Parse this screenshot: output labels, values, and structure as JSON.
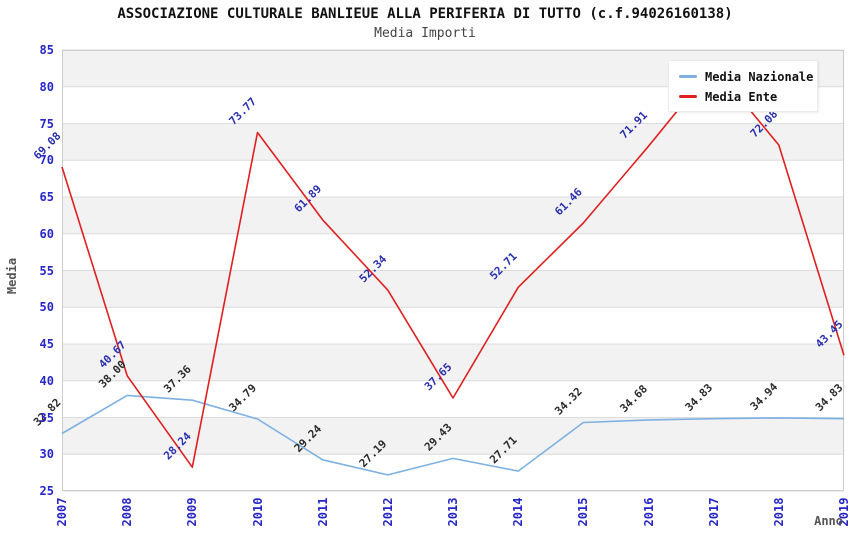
{
  "header": {
    "title": "ASSOCIAZIONE CULTURALE BANLIEUE ALLA PERIFERIA DI TUTTO (c.f.94026160138)",
    "subtitle": "Media Importi"
  },
  "axes": {
    "y_title": "Media",
    "x_title": "Anno"
  },
  "chart_data": {
    "type": "line",
    "title": "ASSOCIAZIONE CULTURALE BANLIEUE ALLA PERIFERIA DI TUTTO (c.f.94026160138)",
    "subtitle": "Media Importi",
    "xlabel": "Anno",
    "ylabel": "Media",
    "x": [
      "2007",
      "2008",
      "2009",
      "2010",
      "2011",
      "2012",
      "2013",
      "2014",
      "2015",
      "2016",
      "2017",
      "2018",
      "2019"
    ],
    "ylim": [
      25,
      85
    ],
    "ytick_step": 5,
    "ytick_labels": [
      "85",
      "80",
      "75",
      "70",
      "65",
      "60",
      "55",
      "50",
      "45",
      "40",
      "35",
      "30",
      "25"
    ],
    "grid": true,
    "background_bands": true,
    "band_colors": [
      "#f2f2f2",
      "#ffffff"
    ],
    "legend_position": "top-right",
    "series": [
      {
        "name": "Media Nazionale",
        "color": "#7eb1e2",
        "label_color": "#2b2b2b",
        "values": [
          32.82,
          38.0,
          37.36,
          34.79,
          29.24,
          27.19,
          29.43,
          27.71,
          34.32,
          34.68,
          34.83,
          34.94,
          34.83
        ],
        "labels": [
          "32.82",
          "38.00",
          "37.36",
          "34.79",
          "29.24",
          "27.19",
          "29.43",
          "27.71",
          "34.32",
          "34.68",
          "34.83",
          "34.94",
          "34.83"
        ]
      },
      {
        "name": "Media Ente",
        "color": "#e02020",
        "label_color": "#2a30b0",
        "values": [
          69.08,
          40.67,
          28.24,
          73.77,
          61.89,
          52.34,
          37.65,
          52.71,
          61.46,
          71.91,
          82.8,
          72.08,
          43.45
        ],
        "labels": [
          "69.08",
          "40.67",
          "28.24",
          "73.77",
          "61.89",
          "52.34",
          "37.65",
          "52.71",
          "61.46",
          "71.91",
          "",
          "72.08",
          "43.45"
        ]
      }
    ]
  },
  "colors": {
    "tick_label": "#2626c9",
    "axis_title": "#555555",
    "grid_line": "#dcdcdc",
    "plot_border": "#cccccc",
    "legend_bg": "#ffffff",
    "legend_text": "#111111"
  }
}
